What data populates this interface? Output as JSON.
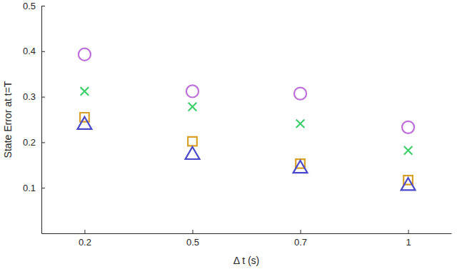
{
  "chart_data": {
    "type": "scatter",
    "x_label": "Δ t (s)",
    "y_label": "State Error at t=T",
    "categories": [
      "0.2",
      "0.5",
      "0.7",
      "1"
    ],
    "ylim": [
      0,
      0.5
    ],
    "yticks": [
      0.1,
      0.2,
      0.3,
      0.4,
      0.5
    ],
    "grid": false,
    "series": [
      {
        "color": "#bf6fd9",
        "marker": "circle",
        "values": [
          0.393,
          0.312,
          0.307,
          0.233
        ]
      },
      {
        "color": "#3ecf6a",
        "marker": "x",
        "values": [
          0.312,
          0.278,
          0.241,
          0.182
        ]
      },
      {
        "color": "#d9a027",
        "marker": "square",
        "values": [
          0.255,
          0.202,
          0.153,
          0.117
        ]
      },
      {
        "color": "#4848c8",
        "marker": "triangle",
        "values": [
          0.238,
          0.172,
          0.142,
          0.104
        ]
      }
    ]
  }
}
